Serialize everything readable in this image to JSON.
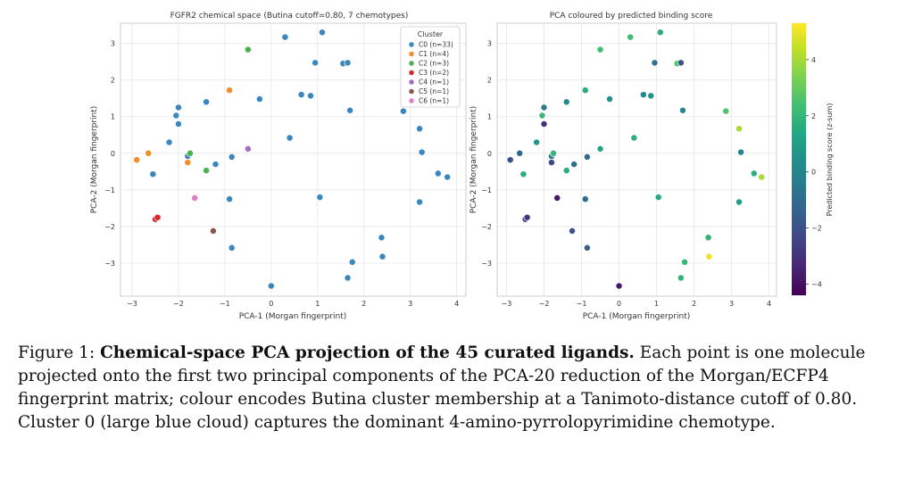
{
  "caption": {
    "label": "Figure 1:",
    "title": "Chemical-space PCA projection of the 45 curated ligands.",
    "body": "Each point is one molecule projected onto the first two principal components of the PCA-20 reduction of the Morgan/ECFP4 fingerprint matrix; colour encodes Butina cluster membership at a Tanimoto-distance cutoff of 0.80. Cluster 0 (large blue cloud) captures the dominant 4-amino-pyrrolopyrimidine chemotype."
  },
  "colorbar": {
    "label": "Predicted binding score (z-sum)",
    "ticks": [
      "4",
      "2",
      "0",
      "−2",
      "−4"
    ],
    "range": [
      -4.4,
      5.3
    ]
  },
  "chart_data": [
    {
      "type": "scatter",
      "title": "FGFR2 chemical space (Butina cutoff=0.80, 7 chemotypes)",
      "xlabel": "PCA-1 (Morgan fingerprint)",
      "ylabel": "PCA-2 (Morgan fingerprint)",
      "xlim": [
        -3.25,
        4.2
      ],
      "ylim": [
        -3.9,
        3.55
      ],
      "xticks": [
        -3,
        -2,
        -1,
        0,
        1,
        2,
        3,
        4
      ],
      "yticks": [
        -3,
        -2,
        -1,
        0,
        1,
        2,
        3
      ],
      "grid": true,
      "legend_title": "Cluster",
      "legend_position": "top-right",
      "series": [
        {
          "name": "C0 (n=33)",
          "color": "#3a87bf",
          "points": [
            [
              0.3,
              3.17
            ],
            [
              1.1,
              3.3
            ],
            [
              0.95,
              2.47
            ],
            [
              1.55,
              2.45
            ],
            [
              1.65,
              2.47
            ],
            [
              2.85,
              1.15
            ],
            [
              3.2,
              0.67
            ],
            [
              3.25,
              0.03
            ],
            [
              3.6,
              -0.55
            ],
            [
              3.8,
              -0.65
            ],
            [
              3.2,
              -1.33
            ],
            [
              1.7,
              1.17
            ],
            [
              1.05,
              -1.2
            ],
            [
              2.38,
              -2.3
            ],
            [
              2.4,
              -2.82
            ],
            [
              1.75,
              -2.97
            ],
            [
              1.65,
              -3.4
            ],
            [
              0.0,
              -3.62
            ],
            [
              0.65,
              1.6
            ],
            [
              0.85,
              1.57
            ],
            [
              0.4,
              0.42
            ],
            [
              -0.25,
              1.48
            ],
            [
              -1.4,
              1.4
            ],
            [
              -2.0,
              1.25
            ],
            [
              -2.05,
              1.03
            ],
            [
              -2.0,
              0.8
            ],
            [
              -2.2,
              0.3
            ],
            [
              -2.55,
              -0.57
            ],
            [
              -1.8,
              -0.08
            ],
            [
              -1.2,
              -0.3
            ],
            [
              -0.85,
              -0.1
            ],
            [
              -0.9,
              -1.25
            ],
            [
              -0.85,
              -2.58
            ]
          ]
        },
        {
          "name": "C1 (n=4)",
          "color": "#f28e2b",
          "points": [
            [
              -0.9,
              1.72
            ],
            [
              -2.65,
              0.0
            ],
            [
              -2.9,
              -0.18
            ],
            [
              -1.8,
              -0.25
            ]
          ]
        },
        {
          "name": "C2 (n=3)",
          "color": "#4caf50",
          "points": [
            [
              -0.5,
              2.83
            ],
            [
              -1.75,
              0.0
            ],
            [
              -1.4,
              -0.47
            ]
          ]
        },
        {
          "name": "C3 (n=2)",
          "color": "#d62728",
          "points": [
            [
              -2.5,
              -1.8
            ],
            [
              -2.45,
              -1.75
            ]
          ]
        },
        {
          "name": "C4 (n=1)",
          "color": "#a66cc1",
          "points": [
            [
              -0.5,
              0.12
            ]
          ]
        },
        {
          "name": "C5 (n=1)",
          "color": "#8c564b",
          "points": [
            [
              -1.25,
              -2.12
            ]
          ]
        },
        {
          "name": "C6 (n=1)",
          "color": "#e37bc6",
          "points": [
            [
              -1.65,
              -1.22
            ]
          ]
        }
      ]
    },
    {
      "type": "scatter",
      "title": "PCA coloured by predicted binding score",
      "xlabel": "PCA-1 (Morgan fingerprint)",
      "ylabel": "PCA-2 (Morgan fingerprint)",
      "xlim": [
        -3.25,
        4.2
      ],
      "ylim": [
        -3.9,
        3.55
      ],
      "xticks": [
        -3,
        -2,
        -1,
        0,
        1,
        2,
        3,
        4
      ],
      "yticks": [
        -3,
        -2,
        -1,
        0,
        1,
        2,
        3
      ],
      "grid": true,
      "colormap": "viridis",
      "points": [
        [
          0.3,
          3.17,
          2.2
        ],
        [
          1.1,
          3.3,
          1.6
        ],
        [
          0.95,
          2.47,
          -0.6
        ],
        [
          1.55,
          2.45,
          2.6
        ],
        [
          1.65,
          2.47,
          -1.9
        ],
        [
          2.85,
          1.15,
          2.6
        ],
        [
          3.2,
          0.67,
          4.0
        ],
        [
          3.25,
          0.03,
          0.0
        ],
        [
          3.6,
          -0.55,
          1.7
        ],
        [
          3.8,
          -0.65,
          4.0
        ],
        [
          3.2,
          -1.33,
          1.0
        ],
        [
          1.7,
          1.17,
          0.1
        ],
        [
          1.05,
          -1.2,
          1.5
        ],
        [
          2.38,
          -2.3,
          1.9
        ],
        [
          2.4,
          -2.82,
          5.0
        ],
        [
          1.75,
          -2.97,
          2.0
        ],
        [
          1.65,
          -3.4,
          1.9
        ],
        [
          0.0,
          -3.62,
          -3.8
        ],
        [
          0.65,
          1.6,
          0.1
        ],
        [
          0.85,
          1.57,
          0.6
        ],
        [
          0.4,
          0.42,
          1.7
        ],
        [
          -0.25,
          1.48,
          0.5
        ],
        [
          -1.4,
          1.4,
          0.2
        ],
        [
          -2.0,
          1.25,
          -0.5
        ],
        [
          -2.05,
          1.03,
          2.1
        ],
        [
          -2.0,
          0.8,
          -3.0
        ],
        [
          -2.2,
          0.3,
          0.6
        ],
        [
          -2.55,
          -0.57,
          1.6
        ],
        [
          -1.8,
          -0.08,
          -0.4
        ],
        [
          -1.2,
          -0.3,
          -0.8
        ],
        [
          -0.85,
          -0.1,
          -1.0
        ],
        [
          -0.9,
          -1.25,
          -1.0
        ],
        [
          -0.85,
          -2.58,
          -1.5
        ],
        [
          -0.9,
          1.72,
          1.6
        ],
        [
          -2.65,
          0.0,
          -1.1
        ],
        [
          -2.9,
          -0.18,
          -2.0
        ],
        [
          -1.8,
          -0.25,
          -2.2
        ],
        [
          -0.5,
          2.83,
          2.3
        ],
        [
          -1.75,
          0.0,
          2.0
        ],
        [
          -1.4,
          -0.47,
          1.6
        ],
        [
          -2.5,
          -1.8,
          -2.4
        ],
        [
          -2.45,
          -1.75,
          -2.9
        ],
        [
          -0.5,
          0.12,
          1.2
        ],
        [
          -1.25,
          -2.12,
          -2.0
        ],
        [
          -1.65,
          -1.22,
          -3.8
        ]
      ]
    }
  ]
}
